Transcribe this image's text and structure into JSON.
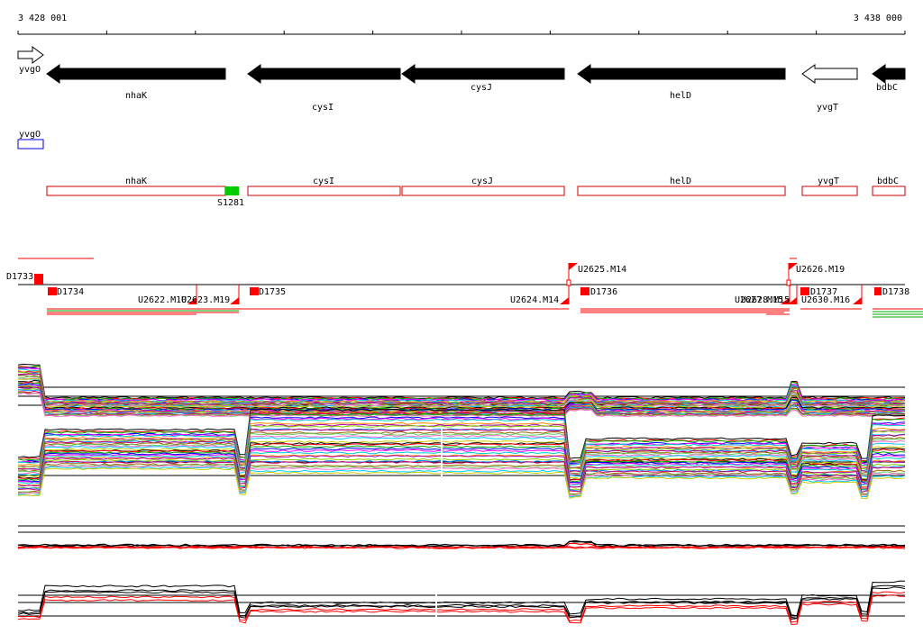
{
  "coordinates": {
    "start": "3 428 001",
    "end": "3 438 000"
  },
  "genes": [
    {
      "name": "yvgO",
      "strand": "+",
      "style": "outline"
    },
    {
      "name": "nhaK",
      "strand": "-",
      "style": "filled"
    },
    {
      "name": "cysI",
      "strand": "-",
      "style": "filled"
    },
    {
      "name": "cysJ",
      "strand": "-",
      "style": "filled"
    },
    {
      "name": "helD",
      "strand": "-",
      "style": "filled"
    },
    {
      "name": "yvgT",
      "strand": "-",
      "style": "outline"
    },
    {
      "name": "bdbC",
      "strand": "-",
      "style": "filled"
    }
  ],
  "cds_boxes": [
    {
      "name": "yvgO",
      "color": "#0000cc"
    },
    {
      "name": "nhaK",
      "color": "#cc0000"
    },
    {
      "name": "cysI",
      "color": "#cc0000"
    },
    {
      "name": "cysJ",
      "color": "#cc0000"
    },
    {
      "name": "helD",
      "color": "#cc0000"
    },
    {
      "name": "yvgT",
      "color": "#cc0000"
    },
    {
      "name": "bdbC",
      "color": "#cc0000"
    }
  ],
  "feature_s": {
    "name": "S1281",
    "color": "#00cc00"
  },
  "promoter_labels": [
    "D1733",
    "D1734",
    "U2622.M10",
    "U2623.M19",
    "D1735",
    "U2624.M14",
    "U2625.M14",
    "D1736",
    "U2626.M19",
    "U2627.M15",
    "U2628.M15",
    "D1737",
    "U2630.M16",
    "D1738"
  ],
  "colors": {
    "feature_red": "#ff0000",
    "gene_black": "#000000",
    "cds_red": "#cc0000",
    "cds_blue": "#0000cc",
    "s_green": "#00cc00"
  },
  "track_palette": [
    "#000000",
    "#ff0000",
    "#00aa00",
    "#0000ff",
    "#ff00ff",
    "#00cccc",
    "#ff8800",
    "#aa00aa",
    "#88cc00",
    "#0088ff",
    "#cc0066",
    "#996600",
    "#66cc66",
    "#ff66cc",
    "#00ccff",
    "#cccc00"
  ]
}
